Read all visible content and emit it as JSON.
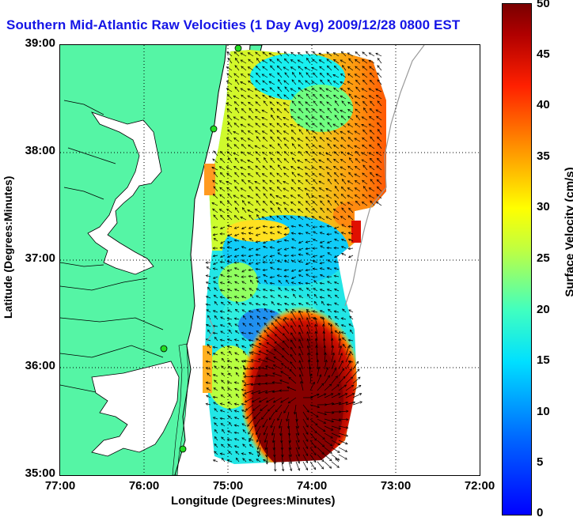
{
  "title": "Southern Mid-Atlantic Raw Velocities (1 Day Avg) 2009/12/28 0800 EST",
  "x_axis": {
    "label": "Longitude (Degrees:Minutes)",
    "ticks": [
      "77:00",
      "76:00",
      "75:00",
      "74:00",
      "73:00",
      "72:00"
    ]
  },
  "y_axis": {
    "label": "Latitude (Degrees:Minutes)",
    "ticks": [
      "39:00",
      "38:00",
      "37:00",
      "36:00",
      "35:00"
    ]
  },
  "colorbar": {
    "label": "Surface Velocity (cm/s)",
    "min": 0,
    "max": 50,
    "ticks": [
      "50",
      "45",
      "40",
      "35",
      "30",
      "25",
      "20",
      "15",
      "10",
      "5",
      "0"
    ],
    "colormap": "jet"
  },
  "map": {
    "lon_range": [
      -77,
      -72
    ],
    "lat_range": [
      35,
      39
    ],
    "grid": "dotted",
    "land_color": "#55f5a5",
    "station_color": "#22dd22",
    "arrow_color": "#000000"
  }
}
